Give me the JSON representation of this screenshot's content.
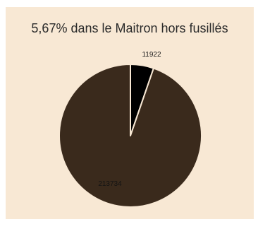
{
  "chart_data": {
    "type": "pie",
    "title": "5,67% dans le Maitron hors fusillés",
    "slices": [
      {
        "value": 11922,
        "label": "11922",
        "color": "#000000",
        "label_color": "#1a1a1a"
      },
      {
        "value": 213734,
        "label": "213734",
        "color": "#3a2a1c",
        "label_color": "#141414"
      }
    ],
    "slice_border_color": "#f8e8d4"
  }
}
